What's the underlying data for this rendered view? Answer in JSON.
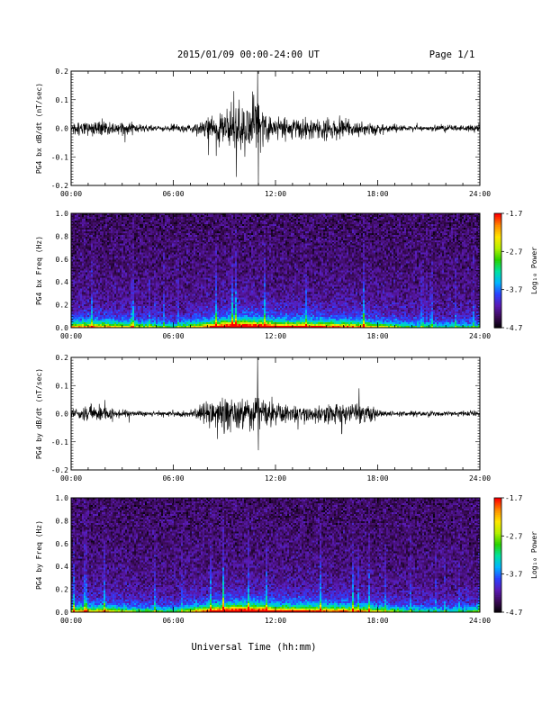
{
  "header": {
    "title": "2015/01/09  00:00-24:00 UT",
    "page": "Page 1/1"
  },
  "footer": {
    "xlabel": "Universal Time (hh:mm)"
  },
  "colors": {
    "trace": "#000000",
    "colormap": [
      "#000000",
      "#3a0a55",
      "#5a1ab4",
      "#2b40ff",
      "#00b4ff",
      "#00e2a0",
      "#28d200",
      "#b4f000",
      "#ffe600",
      "#ff8c00",
      "#ff0000"
    ]
  },
  "chart_data": [
    {
      "type": "line",
      "panel": "bx-timeseries",
      "ylabel": "PG4 bx dB/dt (nT/sec)",
      "xlim": [
        "00:00",
        "24:00"
      ],
      "ylim": [
        -0.2,
        0.2
      ],
      "xticks": [
        "00:00",
        "06:00",
        "12:00",
        "18:00",
        "24:00"
      ],
      "yticks": [
        "0.2",
        "0.1",
        "0.0",
        "-0.1",
        "-0.2"
      ],
      "envelope": {
        "hours": [
          0,
          1,
          2,
          3,
          4,
          5,
          6,
          7,
          8,
          9,
          9.5,
          10,
          10.5,
          11,
          11.5,
          12,
          13,
          14,
          15,
          16,
          17,
          18,
          19,
          20,
          21,
          22,
          23,
          24
        ],
        "amplitude": [
          0.025,
          0.035,
          0.03,
          0.025,
          0.015,
          0.012,
          0.012,
          0.015,
          0.035,
          0.06,
          0.09,
          0.1,
          0.08,
          0.1,
          0.06,
          0.045,
          0.04,
          0.04,
          0.045,
          0.035,
          0.025,
          0.018,
          0.012,
          0.01,
          0.01,
          0.012,
          0.012,
          0.015
        ]
      },
      "spikes": [
        {
          "hour": 9.55,
          "value": 0.13
        },
        {
          "hour": 9.7,
          "value": -0.17
        },
        {
          "hour": 10.05,
          "value": 0.07
        },
        {
          "hour": 10.95,
          "value": 0.2
        },
        {
          "hour": 11.0,
          "value": -0.2
        }
      ]
    },
    {
      "type": "heatmap",
      "panel": "bx-spectrogram",
      "ylabel": "PG4 bx Freq (Hz)",
      "xlim": [
        "00:00",
        "24:00"
      ],
      "ylim": [
        0,
        1.0
      ],
      "xticks": [
        "00:00",
        "06:00",
        "12:00",
        "18:00",
        "24:00"
      ],
      "yticks": [
        "1.0",
        "0.8",
        "0.6",
        "0.4",
        "0.2",
        "0.0"
      ],
      "colorbar": {
        "label": "Log₁₀ Power",
        "ticks": [
          "-1.7",
          "-2.7",
          "-3.7",
          "-4.7"
        ],
        "range": [
          -4.7,
          -1.7
        ]
      },
      "activity_hours": [
        0,
        2,
        4,
        6,
        8,
        9,
        10,
        11,
        12,
        14,
        16,
        17,
        18,
        20,
        22,
        24
      ],
      "activity_level": [
        0.55,
        0.55,
        0.4,
        0.3,
        0.6,
        0.85,
        0.9,
        0.85,
        0.7,
        0.65,
        0.6,
        0.55,
        0.45,
        0.3,
        0.25,
        0.3
      ]
    },
    {
      "type": "line",
      "panel": "by-timeseries",
      "ylabel": "PG4 by dB/dt (nT/sec)",
      "xlim": [
        "00:00",
        "24:00"
      ],
      "ylim": [
        -0.2,
        0.2
      ],
      "xticks": [
        "00:00",
        "06:00",
        "12:00",
        "18:00",
        "24:00"
      ],
      "yticks": [
        "0.2",
        "0.1",
        "0.0",
        "-0.1",
        "-0.2"
      ],
      "envelope": {
        "hours": [
          0,
          1,
          2,
          3,
          4,
          5,
          6,
          7,
          8,
          9,
          9.5,
          10,
          10.5,
          11,
          11.5,
          12,
          13,
          14,
          15,
          16,
          17,
          18,
          19,
          20,
          21,
          22,
          23,
          24
        ],
        "amplitude": [
          0.02,
          0.03,
          0.025,
          0.012,
          0.01,
          0.008,
          0.01,
          0.01,
          0.045,
          0.06,
          0.06,
          0.06,
          0.06,
          0.07,
          0.045,
          0.035,
          0.035,
          0.035,
          0.04,
          0.04,
          0.045,
          0.015,
          0.01,
          0.01,
          0.01,
          0.01,
          0.01,
          0.012
        ]
      },
      "spikes": [
        {
          "hour": 10.95,
          "value": 0.2
        },
        {
          "hour": 11.0,
          "value": -0.13
        },
        {
          "hour": 16.9,
          "value": 0.09
        },
        {
          "hour": 8.6,
          "value": -0.09
        },
        {
          "hour": 15.9,
          "value": -0.07
        }
      ]
    },
    {
      "type": "heatmap",
      "panel": "by-spectrogram",
      "ylabel": "PG4 by Freq (Hz)",
      "xlim": [
        "00:00",
        "24:00"
      ],
      "ylim": [
        0,
        1.0
      ],
      "xticks": [
        "00:00",
        "06:00",
        "12:00",
        "18:00",
        "24:00"
      ],
      "yticks": [
        "1.0",
        "0.8",
        "0.6",
        "0.4",
        "0.2",
        "0.0"
      ],
      "colorbar": {
        "label": "Log₁₀ Power",
        "ticks": [
          "-1.7",
          "-2.7",
          "-3.7",
          "-4.7"
        ],
        "range": [
          -4.7,
          -1.7
        ]
      },
      "activity_hours": [
        0,
        2,
        4,
        6,
        8,
        9,
        10,
        11,
        12,
        14,
        16,
        17,
        18,
        20,
        22,
        24
      ],
      "activity_level": [
        0.5,
        0.5,
        0.35,
        0.3,
        0.65,
        0.85,
        0.9,
        0.85,
        0.7,
        0.65,
        0.6,
        0.55,
        0.45,
        0.3,
        0.25,
        0.35
      ]
    }
  ]
}
